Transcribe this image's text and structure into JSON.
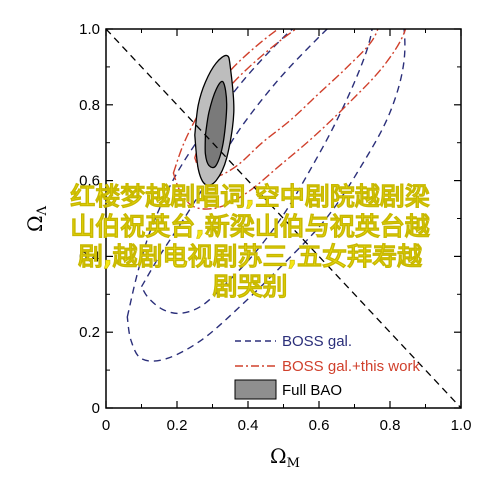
{
  "chart_data": {
    "type": "contour",
    "title": "",
    "xlabel": "Ω",
    "xlabel_sub": "M",
    "ylabel": "Ω",
    "ylabel_sub": "Λ",
    "xlim": [
      0,
      1
    ],
    "ylim": [
      0,
      1
    ],
    "xticks": [
      "0",
      "0.2",
      "0.4",
      "0.6",
      "0.8",
      "1.0"
    ],
    "yticks": [
      "0",
      "0.2",
      "0.4",
      "0.6",
      "0.8",
      "1.0"
    ],
    "reference_line": {
      "x": [
        0,
        1
      ],
      "y": [
        1,
        0
      ],
      "style": "dashed"
    },
    "legend_position": "bottom-right",
    "series": [
      {
        "name": "BOSS gal.",
        "style": "dashed",
        "color": "#2b2f7a",
        "contours": [
          {
            "x": [
              0.1,
              0.15,
              0.22,
              0.3,
              0.38,
              0.48,
              0.58,
              0.66,
              0.72,
              0.75,
              0.74,
              0.7,
              0.64,
              0.57,
              0.5,
              0.42,
              0.34,
              0.27,
              0.21,
              0.16,
              0.12,
              0.1
            ],
            "y": [
              0.32,
              0.4,
              0.5,
              0.62,
              0.74,
              0.86,
              0.96,
              1.03,
              1.06,
              1.03,
              0.96,
              0.86,
              0.74,
              0.62,
              0.51,
              0.41,
              0.33,
              0.27,
              0.25,
              0.26,
              0.29,
              0.32
            ]
          },
          {
            "x": [
              0.06,
              0.09,
              0.13,
              0.2,
              0.3,
              0.42,
              0.55,
              0.68,
              0.78,
              0.83,
              0.84,
              0.8,
              0.72,
              0.62,
              0.5,
              0.38,
              0.27,
              0.17,
              0.1,
              0.07,
              0.06
            ],
            "y": [
              0.24,
              0.36,
              0.48,
              0.62,
              0.76,
              0.9,
              1.02,
              1.1,
              1.12,
              1.05,
              0.92,
              0.78,
              0.64,
              0.5,
              0.38,
              0.27,
              0.18,
              0.13,
              0.13,
              0.18,
              0.24
            ]
          }
        ]
      },
      {
        "name": "BOSS gal.+this work",
        "style": "dash-dot",
        "color": "#d0402c",
        "contours": [
          {
            "x": [
              0.25,
              0.27,
              0.3,
              0.36,
              0.44,
              0.52,
              0.6,
              0.68,
              0.74,
              0.77,
              0.75,
              0.68,
              0.6,
              0.52,
              0.44,
              0.37,
              0.31,
              0.27,
              0.25
            ],
            "y": [
              0.66,
              0.72,
              0.79,
              0.86,
              0.93,
              0.99,
              1.04,
              1.07,
              1.07,
              1.03,
              0.97,
              0.9,
              0.83,
              0.76,
              0.7,
              0.64,
              0.61,
              0.62,
              0.66
            ]
          },
          {
            "x": [
              0.19,
              0.22,
              0.27,
              0.34,
              0.43,
              0.53,
              0.63,
              0.72,
              0.8,
              0.85,
              0.84,
              0.78,
              0.69,
              0.59,
              0.49,
              0.4,
              0.32,
              0.25,
              0.21,
              0.19
            ],
            "y": [
              0.62,
              0.7,
              0.79,
              0.88,
              0.96,
              1.03,
              1.09,
              1.12,
              1.12,
              1.07,
              0.99,
              0.9,
              0.81,
              0.72,
              0.64,
              0.57,
              0.53,
              0.53,
              0.57,
              0.62
            ]
          }
        ]
      },
      {
        "name": "Full BAO",
        "style": "filled",
        "color_inner": "#7a7a7a",
        "color_outer": "#bdbdbd",
        "contours": [
          {
            "x": [
              0.28,
              0.29,
              0.31,
              0.33,
              0.34,
              0.33,
              0.31,
              0.29,
              0.28,
              0.28
            ],
            "y": [
              0.72,
              0.78,
              0.84,
              0.86,
              0.8,
              0.7,
              0.64,
              0.64,
              0.67,
              0.72
            ]
          },
          {
            "x": [
              0.25,
              0.26,
              0.28,
              0.31,
              0.34,
              0.35,
              0.36,
              0.34,
              0.31,
              0.28,
              0.26,
              0.25
            ],
            "y": [
              0.72,
              0.8,
              0.86,
              0.91,
              0.93,
              0.9,
              0.78,
              0.66,
              0.6,
              0.59,
              0.63,
              0.72
            ]
          }
        ]
      }
    ]
  },
  "overlay_text": {
    "line1": "红楼梦越剧唱词,空中剧院越剧梁",
    "line2": "山伯祝英台,新梁山伯与祝英台越",
    "line3": "剧,越剧电视剧苏三,五女拜寿越",
    "line4": "剧哭别"
  },
  "legend": {
    "item1": "BOSS gal.",
    "item2": "BOSS gal.+this work",
    "item3": "Full BAO"
  }
}
